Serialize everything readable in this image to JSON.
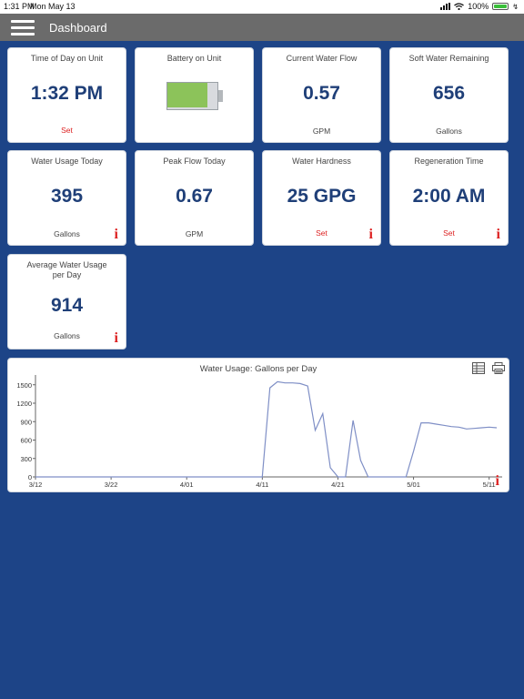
{
  "status_bar": {
    "time": "1:31 PM",
    "date": "Mon May 13",
    "battery_percent": "100%"
  },
  "nav": {
    "title": "Dashboard"
  },
  "cards": {
    "time_of_day": {
      "label": "Time of Day on Unit",
      "value": "1:32 PM",
      "action": "Set"
    },
    "battery": {
      "label": "Battery on Unit",
      "level": 0.8
    },
    "current_flow": {
      "label": "Current Water Flow",
      "value": "0.57",
      "unit": "GPM"
    },
    "soft_water": {
      "label": "Soft Water Remaining",
      "value": "656",
      "unit": "Gallons"
    },
    "usage_today": {
      "label": "Water Usage Today",
      "value": "395",
      "unit": "Gallons",
      "info": "i"
    },
    "peak_flow": {
      "label": "Peak Flow Today",
      "value": "0.67",
      "unit": "GPM"
    },
    "hardness": {
      "label": "Water Hardness",
      "value": "25 GPG",
      "action": "Set",
      "info": "i"
    },
    "regen_time": {
      "label": "Regeneration Time",
      "value": "2:00 AM",
      "action": "Set",
      "info": "i"
    },
    "avg_usage": {
      "label": "Average Water Usage per Day",
      "value": "914",
      "unit": "Gallons",
      "info": "i"
    }
  },
  "chart": {
    "info": "i"
  },
  "chart_data": {
    "type": "line",
    "title": "Water Usage: Gallons per Day",
    "xlabel": "",
    "ylabel": "",
    "x_ticks": [
      "3/12",
      "3/22",
      "4/01",
      "4/11",
      "4/21",
      "5/01",
      "5/11"
    ],
    "y_ticks": [
      0,
      300,
      600,
      900,
      1200,
      1500
    ],
    "ylim": [
      0,
      1600
    ],
    "color": "#7f8fc6",
    "grid": false,
    "series": [
      {
        "x": [
          "3/12",
          "3/13",
          "3/14",
          "3/15",
          "3/16",
          "3/17",
          "3/18",
          "3/19",
          "3/20",
          "3/21",
          "3/22",
          "3/23",
          "3/24",
          "3/25",
          "3/26",
          "3/27",
          "3/28",
          "3/29",
          "3/30",
          "3/31",
          "4/01",
          "4/02",
          "4/03",
          "4/04",
          "4/05",
          "4/06",
          "4/07",
          "4/08",
          "4/09",
          "4/10",
          "4/11",
          "4/12",
          "4/13",
          "4/14",
          "4/15",
          "4/16",
          "4/17",
          "4/18",
          "4/19",
          "4/20",
          "4/21",
          "4/22",
          "4/23",
          "4/24",
          "4/25",
          "4/26",
          "4/27",
          "4/28",
          "4/29",
          "4/30",
          "5/01",
          "5/02",
          "5/03",
          "5/04",
          "5/05",
          "5/06",
          "5/07",
          "5/08",
          "5/09",
          "5/10",
          "5/11",
          "5/12"
        ],
        "values": [
          0,
          0,
          0,
          0,
          0,
          0,
          0,
          0,
          0,
          0,
          0,
          0,
          0,
          0,
          0,
          0,
          0,
          0,
          0,
          0,
          0,
          0,
          0,
          0,
          0,
          0,
          0,
          0,
          0,
          0,
          0,
          1450,
          1550,
          1530,
          1530,
          1520,
          1480,
          760,
          1030,
          150,
          0,
          0,
          920,
          270,
          0,
          0,
          0,
          0,
          0,
          0,
          420,
          880,
          880,
          860,
          840,
          820,
          810,
          780,
          790,
          800,
          810,
          800
        ]
      }
    ]
  }
}
